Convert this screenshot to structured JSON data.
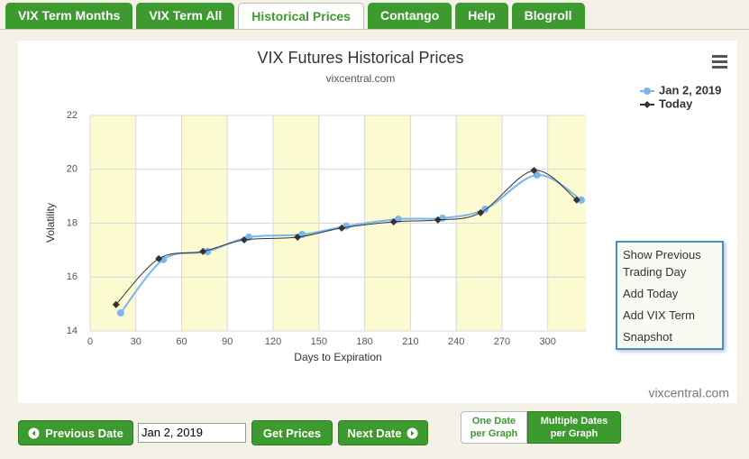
{
  "tabs": [
    {
      "label": "VIX Term Months",
      "active": false
    },
    {
      "label": "VIX Term All",
      "active": false
    },
    {
      "label": "Historical Prices",
      "active": true
    },
    {
      "label": "Contango",
      "active": false
    },
    {
      "label": "Help",
      "active": false
    },
    {
      "label": "Blogroll",
      "active": false
    }
  ],
  "chart_data": {
    "type": "line",
    "title": "VIX Futures Historical Prices",
    "subtitle": "vixcentral.com",
    "credit": "vixcentral.com",
    "x_label": "Days to Expiration",
    "y_label": "Volatility",
    "xlim": [
      0,
      325
    ],
    "ylim": [
      14,
      22
    ],
    "xticks": [
      0,
      30,
      60,
      90,
      120,
      150,
      180,
      210,
      240,
      270,
      300
    ],
    "yticks": [
      14,
      16,
      18,
      20,
      22
    ],
    "grid": true,
    "legend": "top-right",
    "series": [
      {
        "name": "Jan 2, 2019",
        "color": "#7cb5ec",
        "marker": "circle",
        "x": [
          20,
          48,
          77,
          104,
          139,
          168,
          202,
          231,
          259,
          293,
          322
        ],
        "values": [
          14.67,
          16.65,
          16.95,
          17.48,
          17.58,
          17.89,
          18.15,
          18.19,
          18.52,
          19.79,
          18.86
        ]
      },
      {
        "name": "Today",
        "color": "#333333",
        "marker": "diamond",
        "x": [
          17,
          45,
          74,
          101,
          136,
          165,
          199,
          228,
          256,
          291,
          319
        ],
        "values": [
          14.98,
          16.68,
          16.95,
          17.38,
          17.48,
          17.82,
          18.05,
          18.12,
          18.39,
          19.96,
          18.86
        ]
      }
    ]
  },
  "context_menu": [
    "Show Previous Trading Day",
    "Add Today",
    "Add VIX Term",
    "Snapshot"
  ],
  "controls": {
    "previous": "Previous Date",
    "date_input": "Jan 2, 2019",
    "get": "Get Prices",
    "next": "Next Date",
    "toggle": [
      {
        "label": "One Date per Graph",
        "active": false
      },
      {
        "label": "Multiple Dates per Graph",
        "active": true
      }
    ]
  }
}
